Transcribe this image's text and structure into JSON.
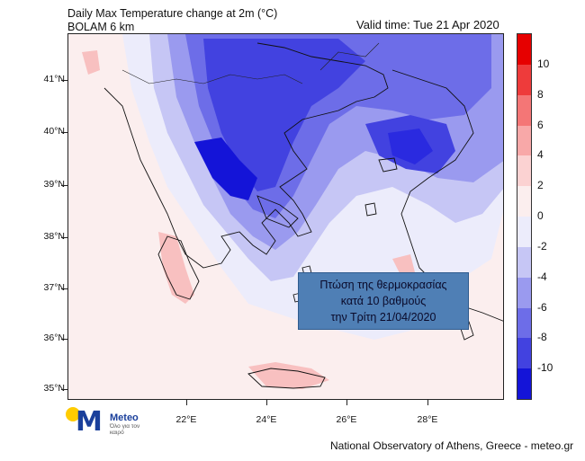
{
  "header": {
    "title": "Daily Max Temperature change at 2m (°C)",
    "model": "BOLAM 6 km",
    "valid_time": "Valid time: Tue 21 Apr 2020"
  },
  "map": {
    "lat_labels": [
      "41°N",
      "40°N",
      "39°N",
      "38°N",
      "37°N",
      "36°N",
      "35°N"
    ],
    "lon_labels": [
      "22°E",
      "24°E",
      "26°E",
      "28°E"
    ]
  },
  "annotation": {
    "line1": "Πτώση της θερμοκρασίας",
    "line2": "κατά 10 βαθμούς",
    "line3": "την Τρίτη  21/04/2020"
  },
  "colorbar": {
    "labels": [
      "10",
      "8",
      "6",
      "4",
      "2",
      "0",
      "-2",
      "-4",
      "-6",
      "-8",
      "-10"
    ],
    "colors": [
      "#e60000",
      "#ee3b3b",
      "#f47676",
      "#f8a8a8",
      "#fbd2d2",
      "#fbeeee",
      "#ececfb",
      "#c6c6f5",
      "#9a9aef",
      "#6d6de8",
      "#4242e0",
      "#1414d8"
    ]
  },
  "logo": {
    "name": "Meteo",
    "tagline": "Όλο για τον καιρό"
  },
  "credit": "National Observatory of Athens, Greece - meteo.gr"
}
